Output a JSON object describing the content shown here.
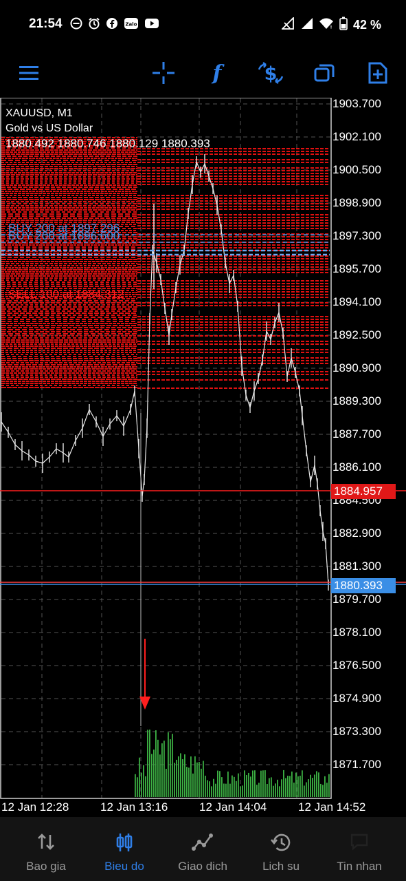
{
  "status_bar": {
    "time": "21:54",
    "zalo_label": "Zalo",
    "battery": "42 %"
  },
  "toolbar": {
    "icons": [
      "menu-icon",
      "crosshair-icon",
      "indicators-icon",
      "trade-icon",
      "windows-icon",
      "new-order-icon"
    ],
    "accent": "#2f7fe8"
  },
  "chart": {
    "symbol": "XAUUSD, M1",
    "description": "Gold vs US Dollar",
    "ohlc": "1880.492 1880.746 1880.129 1880.393",
    "price_axis": [
      "1903.700",
      "1902.100",
      "1900.500",
      "1898.900",
      "1897.300",
      "1895.700",
      "1894.100",
      "1892.500",
      "1890.900",
      "1889.300",
      "1887.700",
      "1886.100",
      "1884.500",
      "1882.900",
      "1881.300",
      "1879.700",
      "1878.100",
      "1876.500",
      "1874.900",
      "1873.300",
      "1871.700"
    ],
    "time_axis": [
      "12 Jan 12:28",
      "12 Jan 13:16",
      "12 Jan 14:04",
      "12 Jan 14:52"
    ],
    "ask_price": "1884.957",
    "bid_price": "1880.393",
    "orders": [
      {
        "label": "BUY 200 at 1897.296",
        "color": "#4a90e2"
      },
      {
        "label": "BUY 200 at 1896.600",
        "color": "#4a90e2"
      },
      {
        "label": "SELL 100 at 1884.312",
        "color": "#ff2020"
      }
    ],
    "colors": {
      "ask": "#ff1f1f",
      "bid": "#3a8ee6",
      "volume": "#3cb043",
      "orders_block": "#e01010"
    }
  },
  "bottom_nav": {
    "items": [
      {
        "label": "Bao gia",
        "icon": "quotes-icon"
      },
      {
        "label": "Bieu do",
        "icon": "chart-icon",
        "active": true
      },
      {
        "label": "Giao dich",
        "icon": "trade-icon"
      },
      {
        "label": "Lich su",
        "icon": "history-icon"
      },
      {
        "label": "Tin nhan",
        "icon": "messages-icon"
      }
    ]
  }
}
